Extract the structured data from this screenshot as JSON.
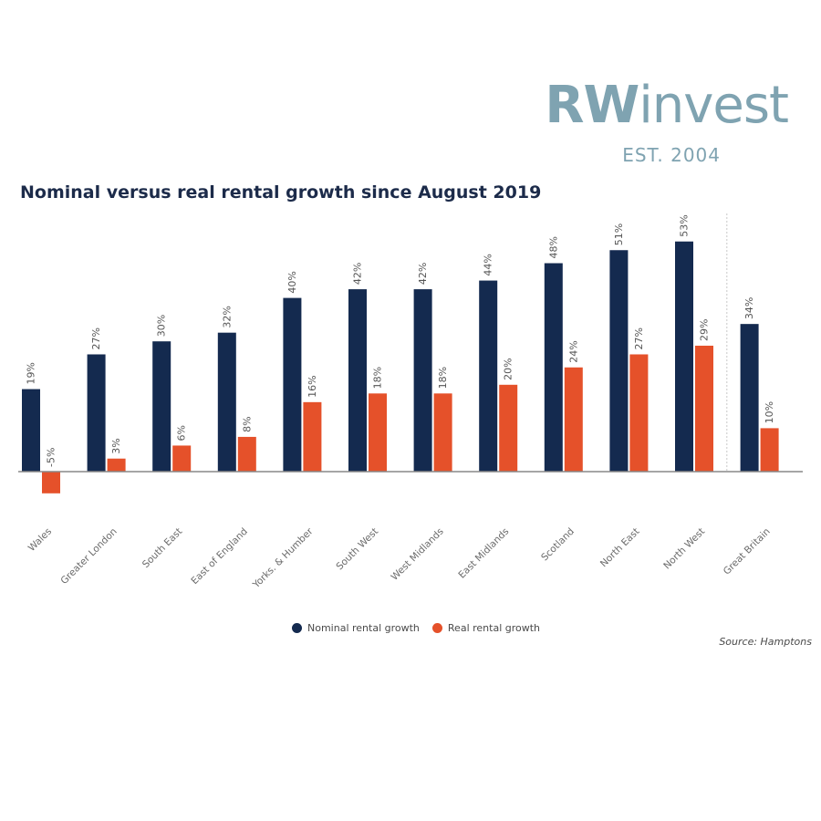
{
  "brand": {
    "logo_rw": "RW",
    "logo_rest": "invest",
    "established": "EST. 2004",
    "color": "#7fa3b1"
  },
  "source": "Source: Hamptons",
  "chart_data": {
    "type": "bar",
    "title": "Nominal versus real rental growth since August 2019",
    "categories": [
      "Wales",
      "Greater London",
      "South East",
      "East of England",
      "Yorks. & Humber",
      "South West",
      "West Midlands",
      "East Midlands",
      "Scotland",
      "North East",
      "North West",
      "Great Britain"
    ],
    "series": [
      {
        "name": "Nominal rental growth",
        "color": "#142a4f",
        "values": [
          19,
          27,
          30,
          32,
          40,
          42,
          42,
          44,
          48,
          51,
          53,
          34
        ],
        "labels": [
          "19%",
          "27%",
          "30%",
          "32%",
          "40%",
          "42%",
          "42%",
          "44%",
          "48%",
          "51%",
          "53%",
          "34%"
        ]
      },
      {
        "name": "Real rental growth",
        "color": "#e5512a",
        "values": [
          -5,
          3,
          6,
          8,
          16,
          18,
          18,
          20,
          24,
          27,
          29,
          10
        ],
        "labels": [
          "-5%",
          "3%",
          "6%",
          "8%",
          "16%",
          "18%",
          "18%",
          "20%",
          "24%",
          "27%",
          "29%",
          "10%"
        ]
      }
    ],
    "ylim": [
      -5,
      55
    ],
    "legend_position": "bottom-center",
    "grid": false
  }
}
